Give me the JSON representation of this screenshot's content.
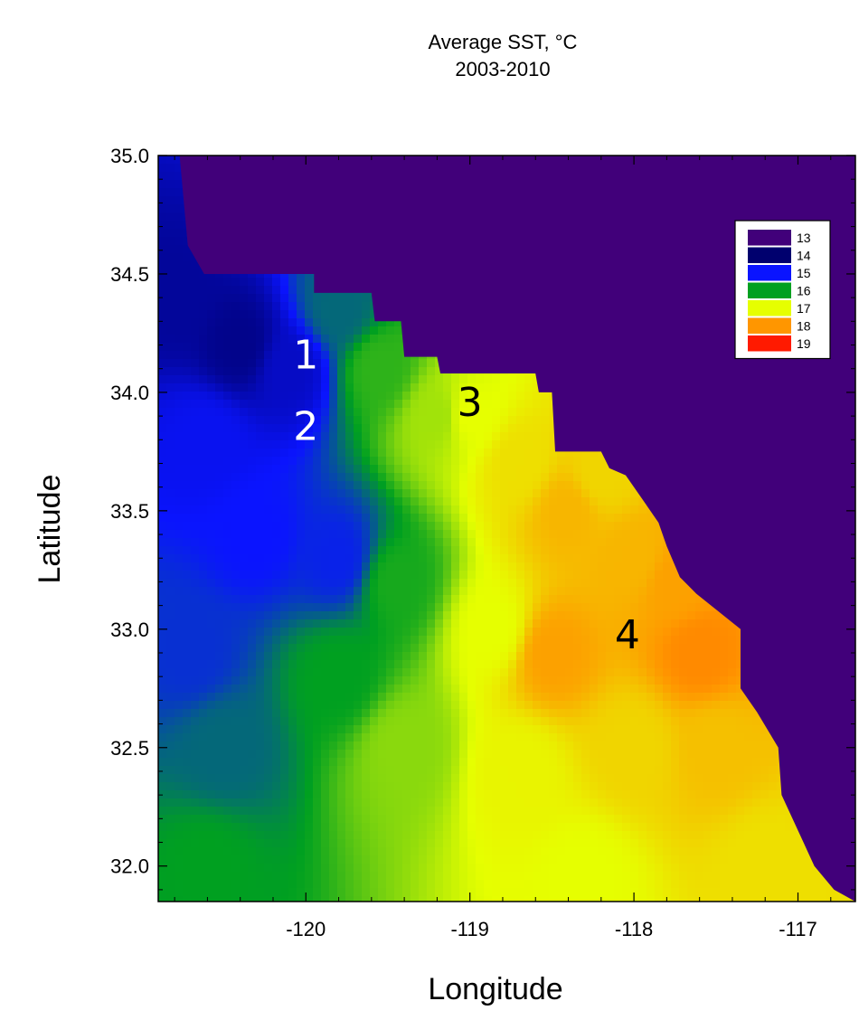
{
  "chart_data": {
    "type": "heatmap",
    "title": "Average SST, °C",
    "title_exponent_note": "",
    "subtitle": "2003-2010",
    "xlabel": "Longitude",
    "ylabel": "Latitude",
    "xlim": [
      -120.9,
      -116.65
    ],
    "ylim": [
      31.85,
      35.0
    ],
    "x_ticks": [
      -120,
      -119,
      -118,
      -117
    ],
    "x_tick_labels": [
      "-120",
      "-119",
      "-118",
      "-117"
    ],
    "y_ticks": [
      32.0,
      32.5,
      33.0,
      33.5,
      34.0,
      34.5,
      35.0
    ],
    "y_tick_labels": [
      "32.0",
      "32.5",
      "33.0",
      "33.5",
      "34.0",
      "34.5",
      "35.0"
    ],
    "legend": {
      "placement": "top-right",
      "entries": [
        {
          "label": "13",
          "color": "#41007a"
        },
        {
          "label": "14",
          "color": "#00006e"
        },
        {
          "label": "15",
          "color": "#0a14ff"
        },
        {
          "label": "16",
          "color": "#00a020"
        },
        {
          "label": "17",
          "color": "#e6ff00"
        },
        {
          "label": "18",
          "color": "#ff9600"
        },
        {
          "label": "19",
          "color": "#ff1a00"
        }
      ]
    },
    "land_color": "#41007a",
    "coastline": [
      [
        -120.77,
        35.0
      ],
      [
        -120.72,
        34.62
      ],
      [
        -120.62,
        34.5
      ],
      [
        -119.95,
        34.5
      ],
      [
        -119.95,
        34.42
      ],
      [
        -119.6,
        34.42
      ],
      [
        -119.58,
        34.3
      ],
      [
        -119.42,
        34.3
      ],
      [
        -119.4,
        34.15
      ],
      [
        -119.2,
        34.15
      ],
      [
        -119.18,
        34.08
      ],
      [
        -118.6,
        34.08
      ],
      [
        -118.58,
        34.0
      ],
      [
        -118.5,
        34.0
      ],
      [
        -118.48,
        33.75
      ],
      [
        -118.2,
        33.75
      ],
      [
        -118.15,
        33.68
      ],
      [
        -118.05,
        33.65
      ],
      [
        -117.95,
        33.55
      ],
      [
        -117.85,
        33.45
      ],
      [
        -117.8,
        33.35
      ],
      [
        -117.72,
        33.22
      ],
      [
        -117.62,
        33.15
      ],
      [
        -117.35,
        33.0
      ],
      [
        -117.35,
        32.75
      ],
      [
        -117.25,
        32.65
      ],
      [
        -117.12,
        32.5
      ],
      [
        -117.1,
        32.3
      ],
      [
        -117.0,
        32.15
      ],
      [
        -116.9,
        32.0
      ],
      [
        -116.78,
        31.9
      ],
      [
        -116.65,
        31.85
      ]
    ],
    "temperature_samples": [
      {
        "lon": -120.8,
        "lat": 34.4,
        "sst": 14.3
      },
      {
        "lon": -120.4,
        "lat": 34.2,
        "sst": 14.2
      },
      {
        "lon": -120.1,
        "lat": 34.1,
        "sst": 14.6
      },
      {
        "lon": -120.6,
        "lat": 33.8,
        "sst": 14.9
      },
      {
        "lon": -120.3,
        "lat": 33.4,
        "sst": 15.0
      },
      {
        "lon": -119.8,
        "lat": 33.3,
        "sst": 15.1
      },
      {
        "lon": -120.7,
        "lat": 32.9,
        "sst": 15.2
      },
      {
        "lon": -120.5,
        "lat": 32.5,
        "sst": 15.6
      },
      {
        "lon": -120.6,
        "lat": 32.0,
        "sst": 16.0
      },
      {
        "lon": -119.8,
        "lat": 34.35,
        "sst": 15.6
      },
      {
        "lon": -119.55,
        "lat": 34.1,
        "sst": 16.2
      },
      {
        "lon": -119.8,
        "lat": 32.8,
        "sst": 16.0
      },
      {
        "lon": -119.2,
        "lat": 33.9,
        "sst": 16.7
      },
      {
        "lon": -119.45,
        "lat": 33.2,
        "sst": 16.1
      },
      {
        "lon": -119.4,
        "lat": 32.5,
        "sst": 16.6
      },
      {
        "lon": -119.0,
        "lat": 33.9,
        "sst": 17.0
      },
      {
        "lon": -118.85,
        "lat": 33.0,
        "sst": 17.0
      },
      {
        "lon": -118.7,
        "lat": 32.4,
        "sst": 17.1
      },
      {
        "lon": -118.7,
        "lat": 33.7,
        "sst": 17.3
      },
      {
        "lon": -118.5,
        "lat": 32.9,
        "sst": 17.9
      },
      {
        "lon": -118.4,
        "lat": 33.5,
        "sst": 17.7
      },
      {
        "lon": -118.0,
        "lat": 33.3,
        "sst": 17.7
      },
      {
        "lon": -118.0,
        "lat": 32.5,
        "sst": 17.4
      },
      {
        "lon": -117.6,
        "lat": 32.9,
        "sst": 18.1
      },
      {
        "lon": -117.75,
        "lat": 33.2,
        "sst": 17.9
      },
      {
        "lon": -117.5,
        "lat": 32.5,
        "sst": 17.6
      },
      {
        "lon": -117.2,
        "lat": 32.0,
        "sst": 17.3
      },
      {
        "lon": -118.3,
        "lat": 31.95,
        "sst": 17.0
      },
      {
        "lon": -118.2,
        "lat": 33.65,
        "sst": 17.4
      }
    ],
    "annotations": [
      {
        "label": "1",
        "lon": -120.0,
        "lat": 34.1,
        "color": "#ffffff"
      },
      {
        "label": "2",
        "lon": -120.0,
        "lat": 33.8,
        "color": "#ffffff"
      },
      {
        "label": "3",
        "lon": -119.0,
        "lat": 33.9,
        "color": "#000000"
      },
      {
        "lon": -118.04,
        "lat": 32.92,
        "label": "4",
        "color": "#000000"
      }
    ]
  }
}
